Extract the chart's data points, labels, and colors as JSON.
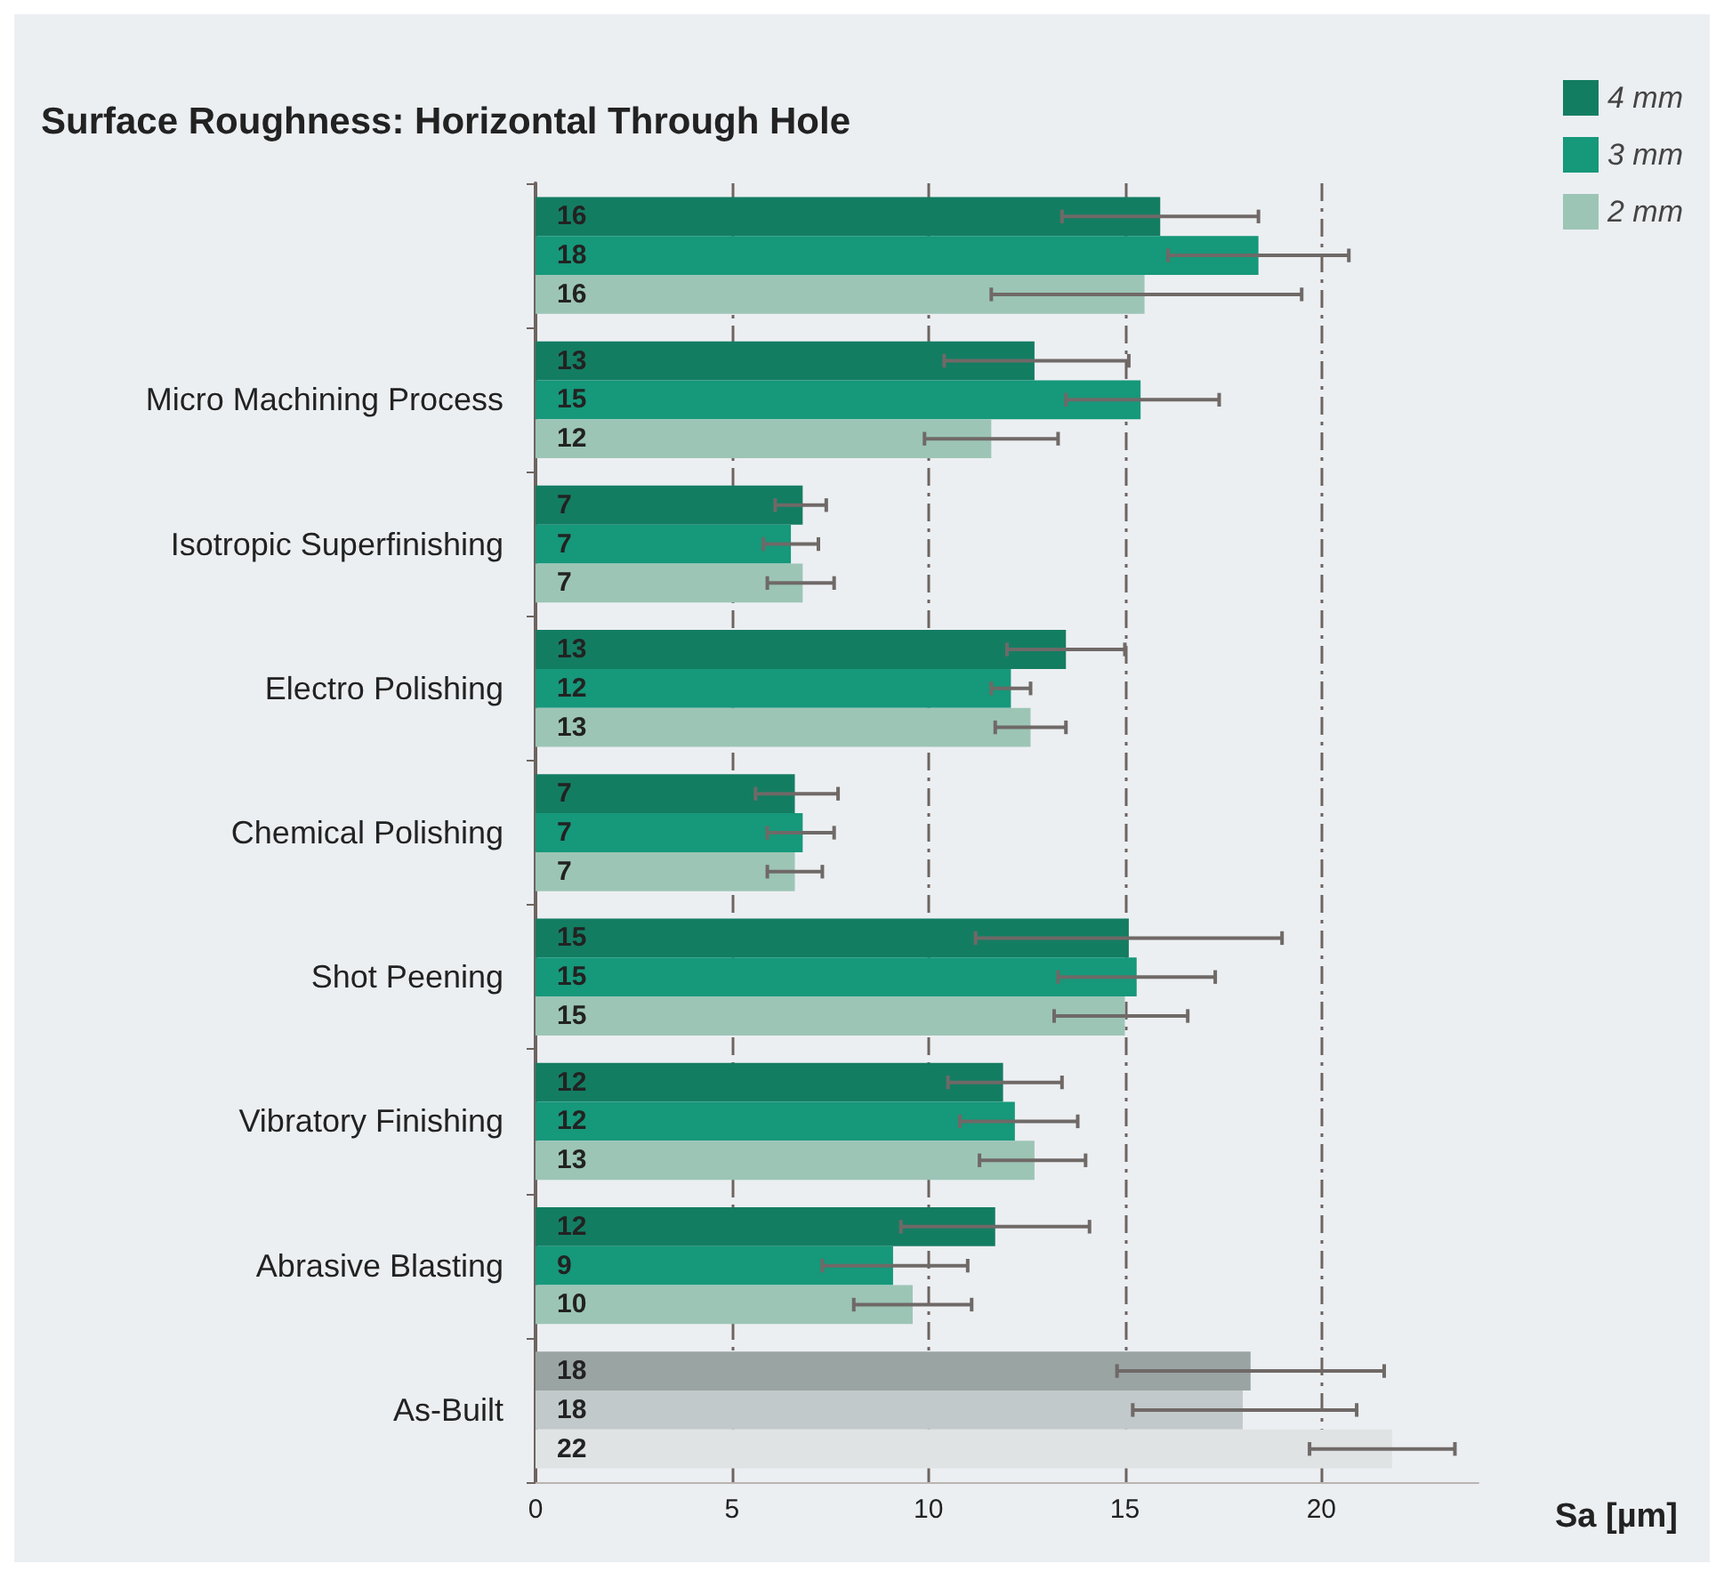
{
  "chart_data": {
    "type": "bar",
    "orientation": "horizontal",
    "title": "Surface Roughness: Horizontal Through Hole",
    "xlabel": "Sa [µm]",
    "categories": [
      null,
      "Micro Machining Process",
      "Isotropic Superfinishing",
      "Electro Polishing",
      "Chemical Polishing",
      "Shot Peening",
      "Vibratory Finishing",
      "Abrasive Blasting",
      "As-Built"
    ],
    "series": [
      {
        "name": "4 mm",
        "color": "#137d62",
        "colors": [
          "#137d62",
          "#137d62",
          "#137d62",
          "#137d62",
          "#137d62",
          "#137d62",
          "#137d62",
          "#137d62",
          "#9aa4a3"
        ],
        "values": [
          15.9,
          12.7,
          6.8,
          13.5,
          6.6,
          15.1,
          11.9,
          11.7,
          18.2
        ],
        "value_labels": [
          "16",
          "13",
          "7",
          "13",
          "7",
          "15",
          "12",
          "12",
          "18"
        ],
        "errors": [
          [
            13.4,
            18.4
          ],
          [
            10.4,
            15.1
          ],
          [
            6.1,
            7.4
          ],
          [
            12.0,
            15.0
          ],
          [
            5.6,
            7.7
          ],
          [
            11.2,
            19.0
          ],
          [
            10.5,
            13.4
          ],
          [
            9.3,
            14.1
          ],
          [
            14.8,
            21.6
          ]
        ]
      },
      {
        "name": "3 mm",
        "color": "#16987a",
        "colors": [
          "#16987a",
          "#16987a",
          "#16987a",
          "#16987a",
          "#16987a",
          "#16987a",
          "#16987a",
          "#16987a",
          "#c2c9ca"
        ],
        "values": [
          18.4,
          15.4,
          6.5,
          12.1,
          6.8,
          15.3,
          12.2,
          9.1,
          18.0
        ],
        "value_labels": [
          "18",
          "15",
          "7",
          "12",
          "7",
          "15",
          "12",
          "9",
          "18"
        ],
        "errors": [
          [
            16.1,
            20.7
          ],
          [
            13.5,
            17.4
          ],
          [
            5.8,
            7.2
          ],
          [
            11.6,
            12.6
          ],
          [
            5.9,
            7.6
          ],
          [
            13.3,
            17.3
          ],
          [
            10.8,
            13.8
          ],
          [
            7.3,
            11.0
          ],
          [
            15.2,
            20.9
          ]
        ]
      },
      {
        "name": "2 mm",
        "color": "#9cc5b6",
        "colors": [
          "#9cc5b6",
          "#9cc5b6",
          "#9cc5b6",
          "#9cc5b6",
          "#9cc5b6",
          "#9cc5b6",
          "#9cc5b6",
          "#9cc5b6",
          "#dfe3e4"
        ],
        "values": [
          15.5,
          11.6,
          6.8,
          12.6,
          6.6,
          15.0,
          12.7,
          9.6,
          21.8
        ],
        "value_labels": [
          "16",
          "12",
          "7",
          "13",
          "7",
          "15",
          "13",
          "10",
          "22"
        ],
        "errors": [
          [
            11.6,
            19.5
          ],
          [
            9.9,
            13.3
          ],
          [
            5.9,
            7.6
          ],
          [
            11.7,
            13.5
          ],
          [
            5.9,
            7.3
          ],
          [
            13.2,
            16.6
          ],
          [
            11.3,
            14.0
          ],
          [
            8.1,
            11.1
          ],
          [
            19.7,
            23.4
          ]
        ]
      }
    ],
    "xlim": [
      0,
      24
    ],
    "xticks": [
      0,
      5,
      10,
      15,
      20
    ],
    "grid": "x",
    "legend": "top right"
  }
}
